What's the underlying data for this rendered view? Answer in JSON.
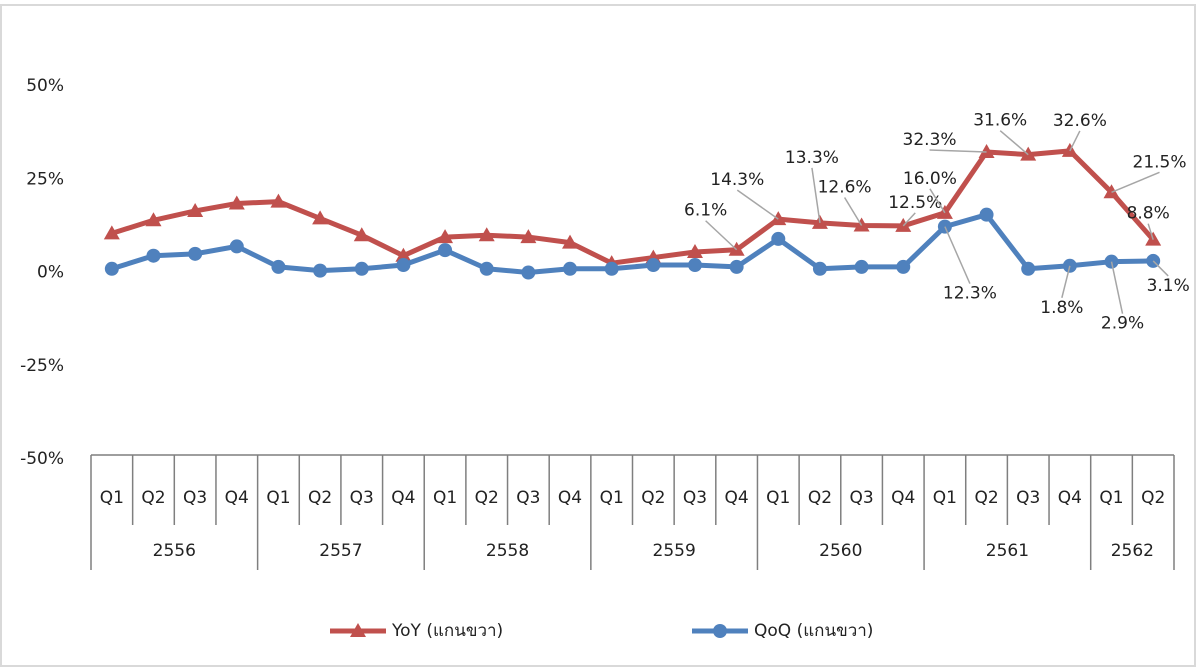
{
  "chart_data": {
    "type": "line",
    "categories": [
      "Q1",
      "Q2",
      "Q3",
      "Q4",
      "Q1",
      "Q2",
      "Q3",
      "Q4",
      "Q1",
      "Q2",
      "Q3",
      "Q4",
      "Q1",
      "Q2",
      "Q3",
      "Q4",
      "Q1",
      "Q2",
      "Q3",
      "Q4",
      "Q1",
      "Q2",
      "Q3",
      "Q4",
      "Q1",
      "Q2"
    ],
    "groups": [
      "2556",
      "2557",
      "2558",
      "2559",
      "2560",
      "2561",
      "2562"
    ],
    "ylim": [
      -50,
      50
    ],
    "yticks": [
      {
        "value": -50,
        "label": "-50%"
      },
      {
        "value": -25,
        "label": "-25%"
      },
      {
        "value": 0,
        "label": "0%"
      },
      {
        "value": 25,
        "label": "25%"
      },
      {
        "value": 50,
        "label": "50%"
      }
    ],
    "grid": false,
    "legend": "bottom",
    "series": [
      {
        "name": "YoY (แกนขวา)",
        "color": "#c0504d",
        "marker": "triangle",
        "values": [
          10.5,
          14,
          16.5,
          18.5,
          19,
          14.5,
          10,
          4.5,
          9.5,
          10,
          9.5,
          8,
          2.5,
          4,
          5.5,
          6.1,
          14.3,
          13.3,
          12.6,
          12.5,
          16.0,
          32.3,
          31.6,
          32.6,
          21.5,
          8.8
        ],
        "value_labels": [
          null,
          null,
          null,
          null,
          null,
          null,
          null,
          null,
          null,
          null,
          null,
          null,
          null,
          null,
          null,
          "6.1%",
          "14.3%",
          "13.3%",
          "12.6%",
          "12.5%",
          "16.0%",
          "32.3%",
          "31.6%",
          "32.6%",
          "21.5%",
          "8.8%"
        ]
      },
      {
        "name": "QoQ (แกนขวา)",
        "color": "#4f81bd",
        "marker": "circle",
        "values": [
          1,
          4.5,
          5,
          7,
          1.5,
          0.5,
          1,
          2,
          6,
          1,
          0,
          1,
          1,
          2,
          2,
          1.5,
          9,
          1,
          1.5,
          1.5,
          12.3,
          15.5,
          1,
          1.8,
          2.9,
          3.1
        ],
        "value_labels": [
          null,
          null,
          null,
          null,
          null,
          null,
          null,
          null,
          null,
          null,
          null,
          null,
          null,
          null,
          null,
          null,
          null,
          null,
          null,
          null,
          "12.3%",
          null,
          null,
          "1.8%",
          "2.9%",
          "3.1%"
        ]
      }
    ]
  }
}
